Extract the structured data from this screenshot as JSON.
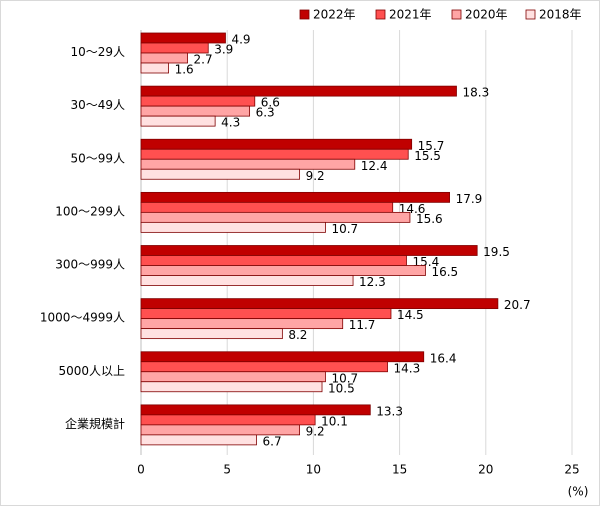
{
  "chart_data": {
    "type": "barh",
    "categories": [
      "10～29人",
      "30～49人",
      "50～99人",
      "100～299人",
      "300～999人",
      "1000～4999人",
      "5000人以上",
      "企業規模計"
    ],
    "series": [
      {
        "name": "2022年",
        "color": "#c00000",
        "values": [
          4.9,
          18.3,
          15.7,
          17.9,
          19.5,
          20.7,
          16.4,
          13.3
        ]
      },
      {
        "name": "2021年",
        "color": "#ff5050",
        "values": [
          3.9,
          6.6,
          15.5,
          14.6,
          15.4,
          14.5,
          14.3,
          10.1
        ]
      },
      {
        "name": "2020年",
        "color": "#ffa5a5",
        "values": [
          2.7,
          6.3,
          12.4,
          15.6,
          16.5,
          11.7,
          10.7,
          9.2
        ]
      },
      {
        "name": "2018年",
        "color": "#ffe1e1",
        "values": [
          1.6,
          4.3,
          9.2,
          10.7,
          12.3,
          8.2,
          10.5,
          6.7
        ]
      }
    ],
    "xlim": [
      0,
      25
    ],
    "xticks": [
      0,
      5,
      10,
      15,
      20,
      25
    ],
    "xlabel": "(%)",
    "grid": true,
    "legend": "top-right"
  }
}
